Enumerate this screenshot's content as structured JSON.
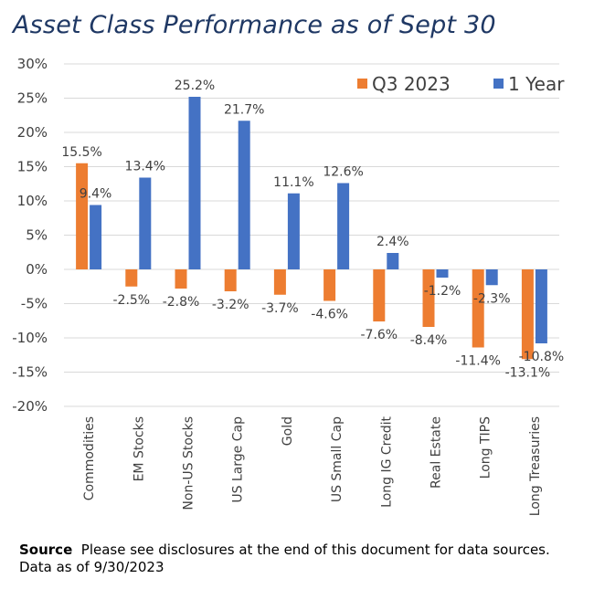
{
  "title": "Asset Class Performance as of Sept 30",
  "source": {
    "label": "Source",
    "text": "Please see disclosures at the end of this document for data sources.",
    "line2": "Data as of 9/30/2023"
  },
  "colors": {
    "q3": "#ed7d31",
    "year": "#4472c4",
    "grid": "#d9d9d9",
    "text": "#404040"
  },
  "chart_data": {
    "type": "bar",
    "title": "Asset Class Performance as of Sept 30",
    "categories": [
      "Commodities",
      "EM Stocks",
      "Non-US Stocks",
      "US Large Cap",
      "Gold",
      "US Small Cap",
      "Long IG Credit",
      "Real Estate",
      "Long TIPS",
      "Long Treasuries"
    ],
    "series": [
      {
        "name": "Q3 2023",
        "values": [
          15.5,
          -2.5,
          -2.8,
          -3.2,
          -3.7,
          -4.6,
          -7.6,
          -8.4,
          -11.4,
          -13.1
        ],
        "labels": [
          "15.5%",
          "-2.5%",
          "-2.8%",
          "-3.2%",
          "-3.7%",
          "-4.6%",
          "-7.6%",
          "-8.4%",
          "-11.4%",
          "-13.1%"
        ]
      },
      {
        "name": "1 Year",
        "values": [
          9.4,
          13.4,
          25.2,
          21.7,
          11.1,
          12.6,
          2.4,
          -1.2,
          -2.3,
          -10.8
        ],
        "labels": [
          "9.4%",
          "13.4%",
          "25.2%",
          "21.7%",
          "11.1%",
          "12.6%",
          "2.4%",
          "-1.2%",
          "-2.3%",
          "-10.8%"
        ]
      }
    ],
    "yticks": [
      "30%",
      "25%",
      "20%",
      "15%",
      "10%",
      "5%",
      "0%",
      "-5%",
      "-10%",
      "-15%",
      "-20%"
    ],
    "ylim": [
      -20,
      30
    ],
    "grid": true,
    "legend": "top-right"
  }
}
